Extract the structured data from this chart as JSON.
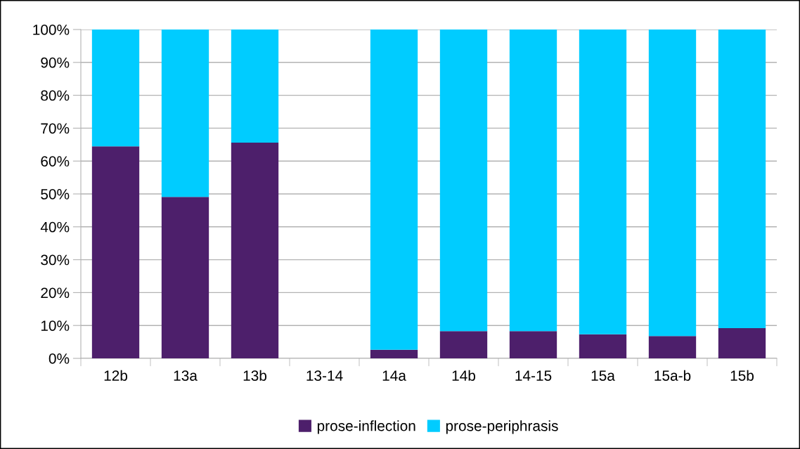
{
  "chart_data": {
    "type": "bar",
    "stacked": true,
    "categories": [
      "12b",
      "13a",
      "13b",
      "13-14",
      "14a",
      "14b",
      "14-15",
      "15a",
      "15a-b",
      "15b"
    ],
    "series": [
      {
        "name": "prose-inflection",
        "color": "#4d1f6b",
        "values": [
          64.5,
          49.1,
          65.6,
          null,
          2.6,
          8.3,
          8.3,
          7.3,
          6.8,
          9.2
        ]
      },
      {
        "name": "prose-periphrasis",
        "color": "#00ccff",
        "values": [
          35.5,
          50.9,
          34.4,
          null,
          97.4,
          91.7,
          91.7,
          92.7,
          93.2,
          90.8
        ]
      }
    ],
    "ylim": [
      0,
      100
    ],
    "yticks": [
      {
        "value": 0,
        "label": "0%"
      },
      {
        "value": 10,
        "label": "10%"
      },
      {
        "value": 20,
        "label": "20%"
      },
      {
        "value": 30,
        "label": "30%"
      },
      {
        "value": 40,
        "label": "40%"
      },
      {
        "value": 50,
        "label": "50%"
      },
      {
        "value": 60,
        "label": "60%"
      },
      {
        "value": 70,
        "label": "70%"
      },
      {
        "value": 80,
        "label": "80%"
      },
      {
        "value": 90,
        "label": "90%"
      },
      {
        "value": 100,
        "label": "100%"
      }
    ],
    "grid": "y",
    "legend": "bottom"
  }
}
